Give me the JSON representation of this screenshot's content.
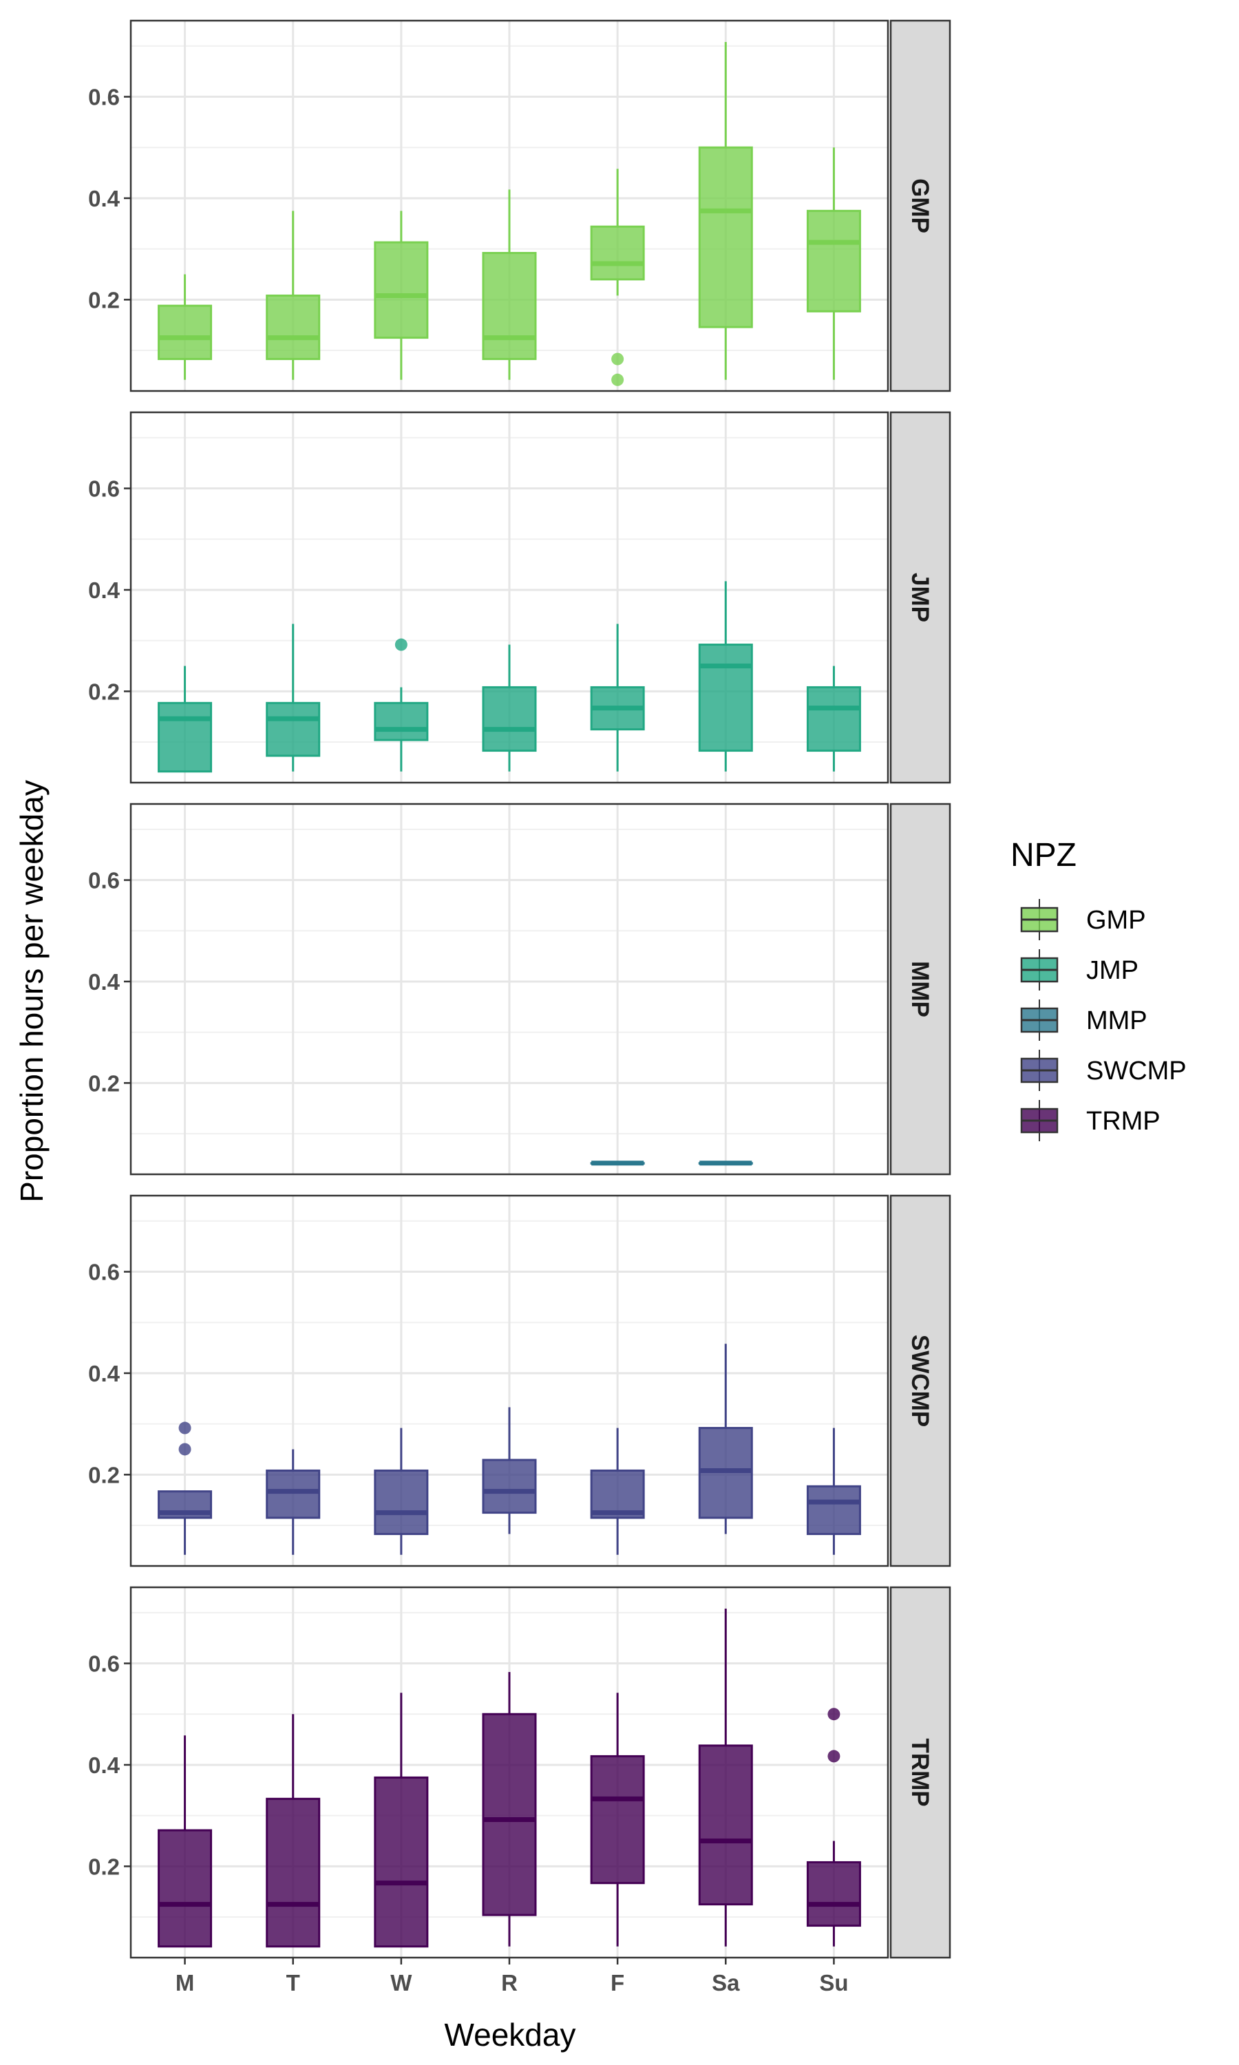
{
  "chart_data": {
    "type": "boxplot",
    "xlabel": "Weekday",
    "ylabel": "Proportion hours per weekday",
    "categories": [
      "M",
      "T",
      "W",
      "R",
      "F",
      "Sa",
      "Su"
    ],
    "ylim": [
      0.02,
      0.75
    ],
    "yticks": [
      0.2,
      0.4,
      0.6
    ],
    "ytick_labels": [
      "0.2",
      "0.4",
      "0.6"
    ],
    "grid": true,
    "legend": {
      "title": "NPZ",
      "position": "right",
      "entries": [
        {
          "label": "GMP",
          "color": "#7ad151"
        },
        {
          "label": "JMP",
          "color": "#22a884"
        },
        {
          "label": "MMP",
          "color": "#2a788e"
        },
        {
          "label": "SWCMP",
          "color": "#414487"
        },
        {
          "label": "TRMP",
          "color": "#440154"
        }
      ]
    },
    "panels": [
      {
        "strip": "GMP",
        "color": "#7ad151",
        "boxes": [
          {
            "x": "M",
            "low": 0.042,
            "q1": 0.083,
            "median": 0.125,
            "q3": 0.188,
            "high": 0.25,
            "outliers": []
          },
          {
            "x": "T",
            "low": 0.042,
            "q1": 0.083,
            "median": 0.125,
            "q3": 0.208,
            "high": 0.375,
            "outliers": []
          },
          {
            "x": "W",
            "low": 0.042,
            "q1": 0.125,
            "median": 0.208,
            "q3": 0.313,
            "high": 0.375,
            "outliers": []
          },
          {
            "x": "R",
            "low": 0.042,
            "q1": 0.083,
            "median": 0.125,
            "q3": 0.292,
            "high": 0.417,
            "outliers": []
          },
          {
            "x": "F",
            "low": 0.208,
            "q1": 0.24,
            "median": 0.271,
            "q3": 0.344,
            "high": 0.458,
            "outliers": [
              0.083,
              0.042
            ]
          },
          {
            "x": "Sa",
            "low": 0.042,
            "q1": 0.146,
            "median": 0.375,
            "q3": 0.5,
            "high": 0.708,
            "outliers": []
          },
          {
            "x": "Su",
            "low": 0.042,
            "q1": 0.177,
            "median": 0.313,
            "q3": 0.375,
            "high": 0.5,
            "outliers": []
          }
        ]
      },
      {
        "strip": "JMP",
        "color": "#22a884",
        "boxes": [
          {
            "x": "M",
            "low": 0.042,
            "q1": 0.042,
            "median": 0.146,
            "q3": 0.177,
            "high": 0.25,
            "outliers": []
          },
          {
            "x": "T",
            "low": 0.042,
            "q1": 0.073,
            "median": 0.146,
            "q3": 0.177,
            "high": 0.333,
            "outliers": []
          },
          {
            "x": "W",
            "low": 0.042,
            "q1": 0.104,
            "median": 0.125,
            "q3": 0.177,
            "high": 0.208,
            "outliers": [
              0.292
            ]
          },
          {
            "x": "R",
            "low": 0.042,
            "q1": 0.083,
            "median": 0.125,
            "q3": 0.208,
            "high": 0.292,
            "outliers": []
          },
          {
            "x": "F",
            "low": 0.042,
            "q1": 0.125,
            "median": 0.167,
            "q3": 0.208,
            "high": 0.333,
            "outliers": []
          },
          {
            "x": "Sa",
            "low": 0.042,
            "q1": 0.083,
            "median": 0.25,
            "q3": 0.292,
            "high": 0.417,
            "outliers": []
          },
          {
            "x": "Su",
            "low": 0.042,
            "q1": 0.083,
            "median": 0.167,
            "q3": 0.208,
            "high": 0.25,
            "outliers": []
          }
        ]
      },
      {
        "strip": "MMP",
        "color": "#2a788e",
        "boxes": [
          {
            "x": "F",
            "low": 0.042,
            "q1": 0.042,
            "median": 0.042,
            "q3": 0.042,
            "high": 0.042,
            "outliers": []
          },
          {
            "x": "Sa",
            "low": 0.042,
            "q1": 0.042,
            "median": 0.042,
            "q3": 0.042,
            "high": 0.042,
            "outliers": []
          }
        ]
      },
      {
        "strip": "SWCMP",
        "color": "#414487",
        "boxes": [
          {
            "x": "M",
            "low": 0.042,
            "q1": 0.115,
            "median": 0.125,
            "q3": 0.167,
            "high": 0.167,
            "outliers": [
              0.292,
              0.25
            ]
          },
          {
            "x": "T",
            "low": 0.042,
            "q1": 0.115,
            "median": 0.167,
            "q3": 0.208,
            "high": 0.25,
            "outliers": []
          },
          {
            "x": "W",
            "low": 0.042,
            "q1": 0.083,
            "median": 0.125,
            "q3": 0.208,
            "high": 0.292,
            "outliers": []
          },
          {
            "x": "R",
            "low": 0.083,
            "q1": 0.125,
            "median": 0.167,
            "q3": 0.229,
            "high": 0.333,
            "outliers": []
          },
          {
            "x": "F",
            "low": 0.042,
            "q1": 0.115,
            "median": 0.125,
            "q3": 0.208,
            "high": 0.292,
            "outliers": []
          },
          {
            "x": "Sa",
            "low": 0.083,
            "q1": 0.115,
            "median": 0.208,
            "q3": 0.292,
            "high": 0.458,
            "outliers": []
          },
          {
            "x": "Su",
            "low": 0.042,
            "q1": 0.083,
            "median": 0.146,
            "q3": 0.177,
            "high": 0.292,
            "outliers": []
          }
        ]
      },
      {
        "strip": "TRMP",
        "color": "#440154",
        "boxes": [
          {
            "x": "M",
            "low": 0.042,
            "q1": 0.042,
            "median": 0.125,
            "q3": 0.271,
            "high": 0.458,
            "outliers": []
          },
          {
            "x": "T",
            "low": 0.042,
            "q1": 0.042,
            "median": 0.125,
            "q3": 0.333,
            "high": 0.5,
            "outliers": []
          },
          {
            "x": "W",
            "low": 0.042,
            "q1": 0.042,
            "median": 0.167,
            "q3": 0.375,
            "high": 0.542,
            "outliers": []
          },
          {
            "x": "R",
            "low": 0.042,
            "q1": 0.104,
            "median": 0.292,
            "q3": 0.5,
            "high": 0.583,
            "outliers": []
          },
          {
            "x": "F",
            "low": 0.042,
            "q1": 0.167,
            "median": 0.333,
            "q3": 0.417,
            "high": 0.542,
            "outliers": []
          },
          {
            "x": "Sa",
            "low": 0.042,
            "q1": 0.125,
            "median": 0.25,
            "q3": 0.438,
            "high": 0.708,
            "outliers": []
          },
          {
            "x": "Su",
            "low": 0.042,
            "q1": 0.083,
            "median": 0.125,
            "q3": 0.208,
            "high": 0.25,
            "outliers": [
              0.5,
              0.417
            ]
          }
        ]
      }
    ]
  }
}
